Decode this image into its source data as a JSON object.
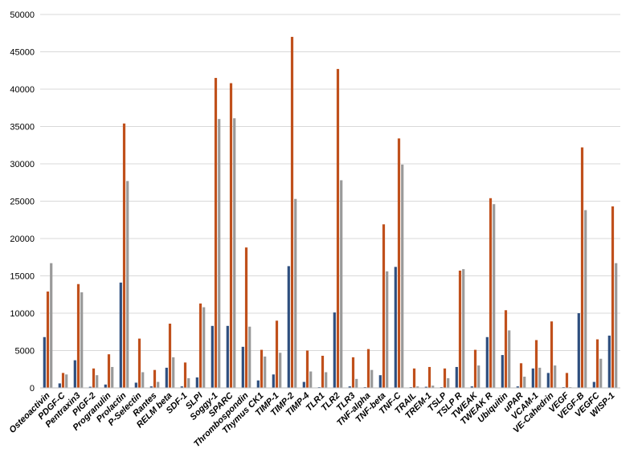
{
  "chart_data": {
    "type": "bar",
    "title": "",
    "xlabel": "",
    "ylabel": "",
    "ylim": [
      0,
      50000
    ],
    "yticks": [
      0,
      5000,
      10000,
      15000,
      20000,
      25000,
      30000,
      35000,
      40000,
      45000,
      50000
    ],
    "ytick_labels": [
      "0",
      "5000",
      "10000",
      "15000",
      "20000",
      "25000",
      "30000",
      "35000",
      "40000",
      "45000",
      "50000"
    ],
    "grid": true,
    "legend": "none",
    "categories": [
      "Osteoactivin",
      "PDGF-C",
      "Pentraxin3",
      "PIGF-2",
      "Progranulin",
      "Prolactin",
      "P-Selectin",
      "Rantes",
      "RELM beta",
      "SDF-1",
      "SLPI",
      "Soggy-1",
      "SPARC",
      "Thrombospondin",
      "Thymus CK1",
      "TIMP-1",
      "TIMP-2",
      "TIMP-4",
      "TLR1",
      "TLR2",
      "TLR3",
      "TNF-alpha",
      "TNF-beta",
      "TNF-C",
      "TRAIL",
      "TREM-1",
      "TSLP",
      "TSLP R",
      "TWEAK",
      "TWEAK R",
      "Ubiquitin",
      "uPAR",
      "VCAM-1",
      "VE-Cahedrin",
      "VEGF",
      "VEGF-B",
      "VEGFC",
      "WISP-1"
    ],
    "series": [
      {
        "color": "#2e4e7e",
        "values": [
          6800,
          600,
          3700,
          150,
          450,
          14100,
          700,
          200,
          2700,
          200,
          1400,
          8300,
          8300,
          5500,
          1000,
          1800,
          16300,
          800,
          100,
          10100,
          200,
          100,
          1700,
          16200,
          100,
          150,
          100,
          2800,
          200,
          6800,
          4400,
          200,
          2600,
          2000,
          100,
          10000,
          800,
          7000
        ]
      },
      {
        "color": "#c0501c",
        "values": [
          12900,
          2000,
          13900,
          2600,
          4500,
          35400,
          6600,
          2400,
          8600,
          3400,
          11300,
          41500,
          40800,
          18800,
          5100,
          9000,
          47000,
          5000,
          4300,
          42700,
          4100,
          5200,
          21900,
          33400,
          2600,
          2800,
          2600,
          15700,
          5100,
          25400,
          10400,
          3300,
          6400,
          8900,
          2000,
          32200,
          6500,
          24300
        ]
      },
      {
        "color": "#9a9a9a",
        "values": [
          16700,
          1800,
          12800,
          1700,
          2800,
          27700,
          2100,
          800,
          4100,
          1300,
          10800,
          36000,
          36100,
          8200,
          4200,
          4700,
          25300,
          2200,
          2100,
          27800,
          1200,
          2400,
          15600,
          29900,
          200,
          300,
          1300,
          15900,
          3000,
          24600,
          7700,
          1500,
          2700,
          3000,
          100,
          23800,
          3900,
          16700
        ]
      }
    ]
  }
}
